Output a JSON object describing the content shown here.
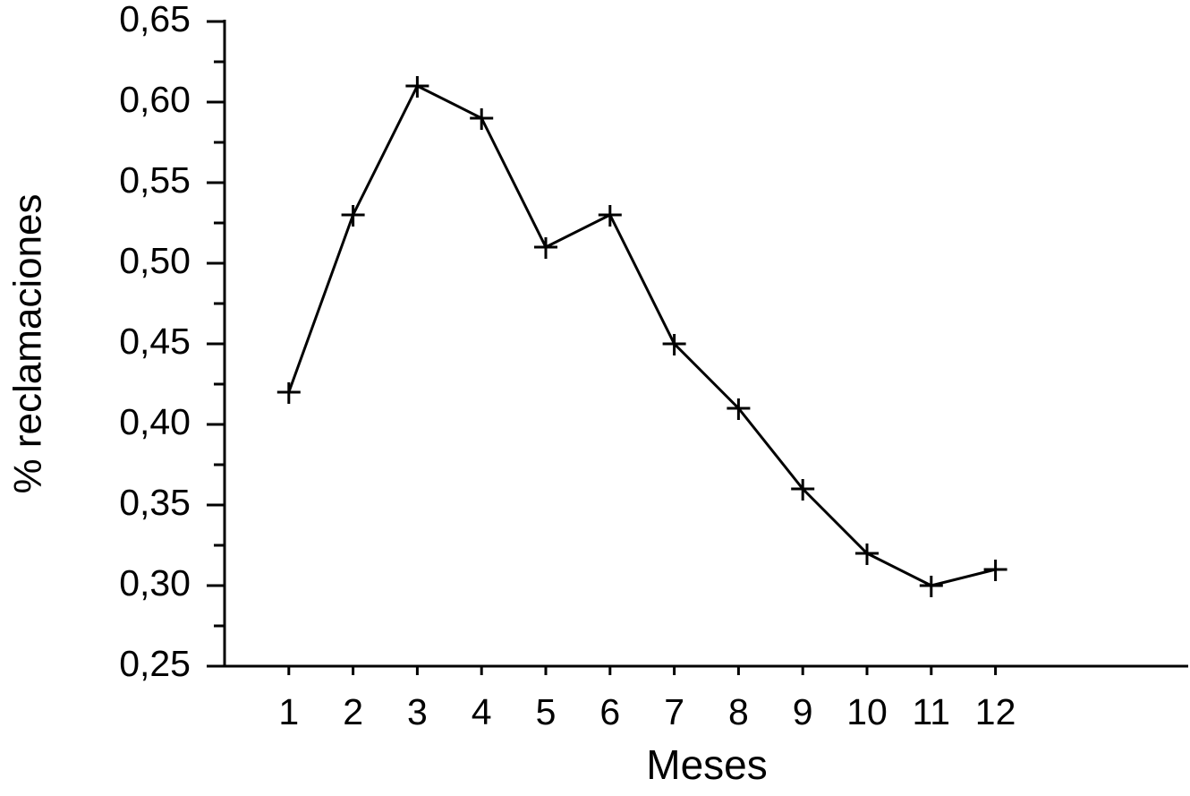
{
  "chart_data": {
    "type": "line",
    "x_label": "Meses",
    "y_label": "% reclamaciones",
    "x": [
      1,
      2,
      3,
      4,
      5,
      6,
      7,
      8,
      9,
      10,
      11,
      12
    ],
    "series": [
      {
        "color": "#000000",
        "marker": "plus",
        "values": [
          0.42,
          0.53,
          0.61,
          0.59,
          0.51,
          0.53,
          0.45,
          0.41,
          0.36,
          0.32,
          0.3,
          0.31
        ]
      }
    ],
    "xlim": [
      0,
      15
    ],
    "xticks": [
      1,
      2,
      3,
      4,
      5,
      6,
      7,
      8,
      9,
      10,
      11,
      12
    ],
    "ylim": [
      0.25,
      0.65
    ],
    "yticks": [
      {
        "value": 0.25,
        "label": "0,25"
      },
      {
        "value": 0.3,
        "label": "0,30"
      },
      {
        "value": 0.35,
        "label": "0,35"
      },
      {
        "value": 0.4,
        "label": "0,40"
      },
      {
        "value": 0.45,
        "label": "0,45"
      },
      {
        "value": 0.5,
        "label": "0,50"
      },
      {
        "value": 0.55,
        "label": "0,55"
      },
      {
        "value": 0.6,
        "label": "0,60"
      },
      {
        "value": 0.65,
        "label": "0,65"
      }
    ],
    "yminorticks": [
      0.275,
      0.325,
      0.375,
      0.425,
      0.475,
      0.525,
      0.575,
      0.625
    ],
    "grid": false
  }
}
